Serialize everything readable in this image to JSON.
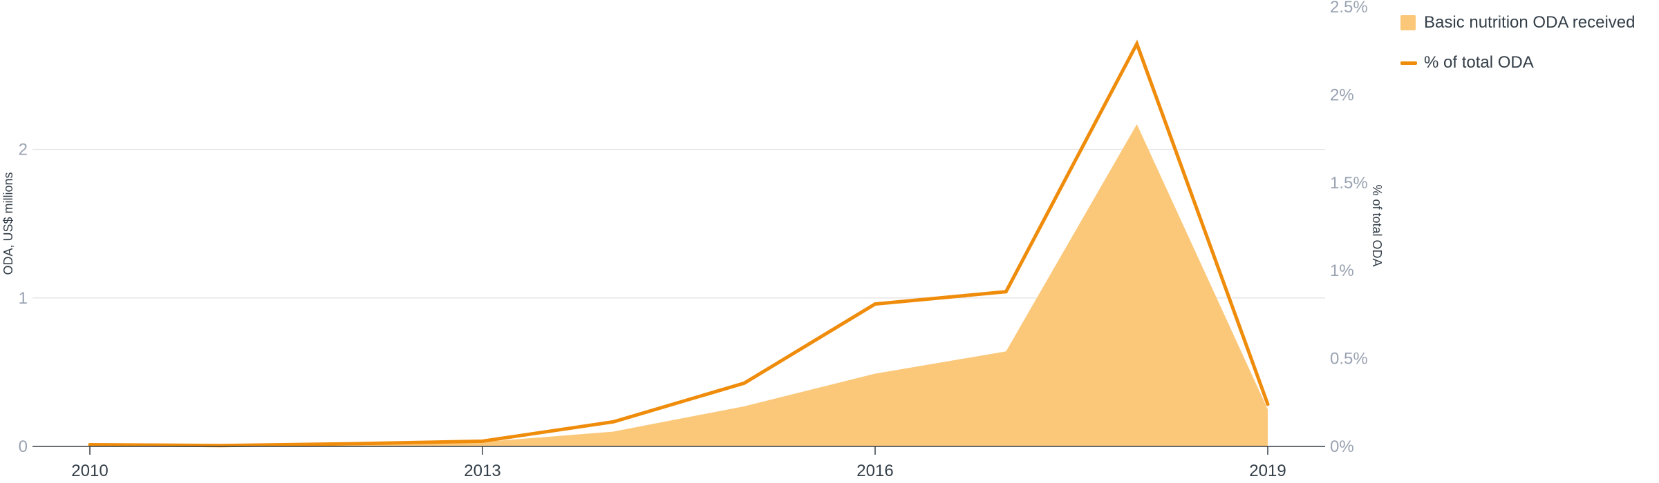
{
  "chart_data": {
    "type": "area",
    "x": [
      2010,
      2011,
      2012,
      2013,
      2014,
      2015,
      2016,
      2017,
      2018,
      2019
    ],
    "series": [
      {
        "name": "Basic nutrition ODA received",
        "type": "area",
        "axis": "left",
        "color": "#fbc87a",
        "values": [
          0.0,
          0.0,
          0.005,
          0.03,
          0.1,
          0.27,
          0.49,
          0.64,
          2.17,
          0.25
        ]
      },
      {
        "name": "% of total ODA",
        "type": "line",
        "axis": "right",
        "color": "#ef8c0b",
        "values": [
          0.01,
          0.005,
          0.015,
          0.03,
          0.14,
          0.36,
          0.81,
          0.88,
          2.29,
          0.24
        ]
      }
    ],
    "x_ticks": [
      "2010",
      "2013",
      "2016",
      "2019"
    ],
    "y_left": {
      "label": "ODA, US$ millions",
      "ticks": [
        "0",
        "1",
        "2"
      ],
      "ylim": [
        0,
        2.96
      ]
    },
    "y_right": {
      "label": "% of total ODA",
      "ticks": [
        "0%",
        "0.5%",
        "1%",
        "1.5%",
        "2%",
        "2.5%"
      ],
      "ylim": [
        0,
        2.5
      ]
    },
    "grid": true,
    "legend_position": "top-right"
  },
  "legend": {
    "area_label": "Basic nutrition ODA received",
    "line_label": "% of total ODA"
  }
}
